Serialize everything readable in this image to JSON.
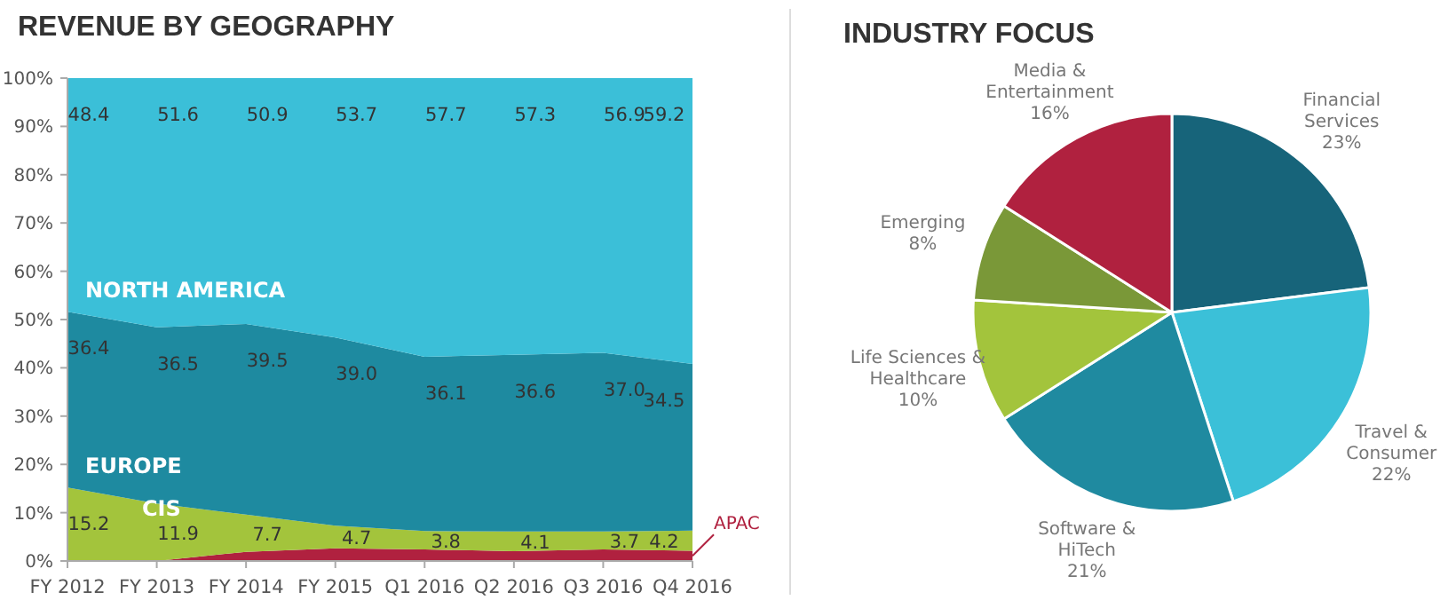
{
  "chart_data": [
    {
      "type": "area",
      "title": "REVENUE BY GEOGRAPHY",
      "stacked": true,
      "categories": [
        "FY 2012",
        "FY 2013",
        "FY 2014",
        "FY 2015",
        "Q1 2016",
        "Q2 2016",
        "Q3 2016",
        "Q4 2016"
      ],
      "ylim": [
        0,
        100
      ],
      "yticks": [
        {
          "value": 0,
          "label": "0%"
        },
        {
          "value": 10,
          "label": "10%"
        },
        {
          "value": 20,
          "label": "20%"
        },
        {
          "value": 30,
          "label": "30%"
        },
        {
          "value": 40,
          "label": "40%"
        },
        {
          "value": 50,
          "label": "50%"
        },
        {
          "value": 60,
          "label": "60%"
        },
        {
          "value": 70,
          "label": "70%"
        },
        {
          "value": 80,
          "label": "80%"
        },
        {
          "value": 90,
          "label": "90%"
        },
        {
          "value": 100,
          "label": "100%"
        }
      ],
      "grid": false,
      "series": [
        {
          "name": "APAC",
          "color": "#b0213f",
          "values": [
            0,
            0,
            1.9,
            2.6,
            2.4,
            2.0,
            2.4,
            2.1
          ]
        },
        {
          "name": "CIS",
          "color": "#a3c43c",
          "values": [
            15.2,
            11.9,
            7.7,
            4.7,
            3.8,
            4.1,
            3.7,
            4.2
          ],
          "value_labels": [
            "15.2",
            "11.9",
            "7.7",
            "4.7",
            "3.8",
            "4.1",
            "3.7",
            "4.2"
          ]
        },
        {
          "name": "EUROPE",
          "color": "#1e8aa0",
          "values": [
            36.4,
            36.5,
            39.5,
            39.0,
            36.1,
            36.6,
            37.0,
            34.5
          ],
          "value_labels": [
            "36.4",
            "36.5",
            "39.5",
            "39.0",
            "36.1",
            "36.6",
            "37.0",
            "34.5"
          ]
        },
        {
          "name": "NORTH AMERICA",
          "color": "#3bbfd8",
          "values": [
            48.4,
            51.6,
            50.9,
            53.7,
            57.7,
            57.3,
            56.9,
            59.2
          ],
          "value_labels": [
            "48.4",
            "51.6",
            "50.9",
            "53.7",
            "57.7",
            "57.3",
            "56.9",
            "59.2"
          ]
        }
      ]
    },
    {
      "type": "pie",
      "title": "INDUSTRY FOCUS",
      "categories": [
        "Financial Services",
        "Travel & Consumer",
        "Software & HiTech",
        "Life Sciences & Healthcare",
        "Emerging",
        "Media & Entertainment"
      ],
      "values": [
        23,
        22,
        21,
        10,
        8,
        16
      ],
      "value_labels": [
        "23%",
        "22%",
        "21%",
        "10%",
        "8%",
        "16%"
      ],
      "colors": [
        "#17647a",
        "#3bc0d8",
        "#1f8aa0",
        "#a3c43c",
        "#7a9838",
        "#b0213f"
      ]
    }
  ]
}
